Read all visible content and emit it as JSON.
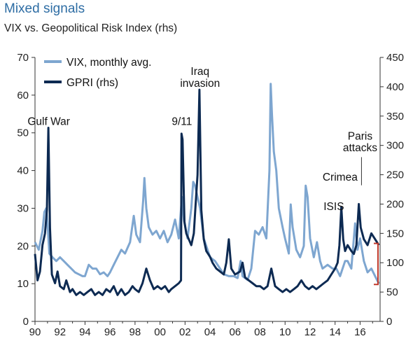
{
  "chart_data": {
    "type": "line",
    "title": "Mixed signals",
    "subtitle": "VIX vs. Geopolitical Risk Index (rhs)",
    "xlim": [
      1990,
      2017.6
    ],
    "ylim_left": [
      0,
      70
    ],
    "ylim_right": [
      0,
      450
    ],
    "x_ticks": [
      1990,
      1992,
      1994,
      1996,
      1998,
      2000,
      2002,
      2004,
      2006,
      2008,
      2010,
      2012,
      2014,
      2016
    ],
    "x_tick_labels": [
      "90",
      "92",
      "94",
      "96",
      "98",
      "00",
      "02",
      "04",
      "06",
      "08",
      "10",
      "12",
      "14",
      "16"
    ],
    "y_left_ticks": [
      "0",
      "10",
      "20",
      "30",
      "40",
      "50",
      "60",
      "70"
    ],
    "y_right_ticks": [
      "0",
      "50",
      "100",
      "150",
      "200",
      "250",
      "300",
      "350",
      "400",
      "450"
    ],
    "grid": false,
    "legend_position": "top-left",
    "series": [
      {
        "name": "VIX, monthly avg.",
        "axis": "left",
        "color": "#7ea6d0",
        "points": [
          [
            1990.0,
            21
          ],
          [
            1990.3,
            19
          ],
          [
            1990.6,
            24
          ],
          [
            1990.75,
            29
          ],
          [
            1990.9,
            30
          ],
          [
            1991.0,
            26
          ],
          [
            1991.15,
            18
          ],
          [
            1991.4,
            17
          ],
          [
            1991.7,
            16
          ],
          [
            1992.0,
            17
          ],
          [
            1992.3,
            16
          ],
          [
            1992.6,
            15
          ],
          [
            1992.9,
            14
          ],
          [
            1993.2,
            13
          ],
          [
            1993.5,
            12.5
          ],
          [
            1993.8,
            12
          ],
          [
            1994.0,
            12
          ],
          [
            1994.3,
            15
          ],
          [
            1994.6,
            14
          ],
          [
            1994.9,
            14
          ],
          [
            1995.2,
            12.5
          ],
          [
            1995.5,
            13
          ],
          [
            1995.8,
            12
          ],
          [
            1996.0,
            13
          ],
          [
            1996.3,
            15
          ],
          [
            1996.6,
            17
          ],
          [
            1996.9,
            19
          ],
          [
            1997.2,
            18
          ],
          [
            1997.6,
            21
          ],
          [
            1997.9,
            28
          ],
          [
            1998.1,
            23
          ],
          [
            1998.4,
            21
          ],
          [
            1998.65,
            32
          ],
          [
            1998.75,
            38
          ],
          [
            1998.9,
            30
          ],
          [
            1999.1,
            25
          ],
          [
            1999.4,
            23
          ],
          [
            1999.7,
            24
          ],
          [
            2000.0,
            22
          ],
          [
            2000.3,
            24
          ],
          [
            2000.6,
            21
          ],
          [
            2000.9,
            23
          ],
          [
            2001.2,
            27
          ],
          [
            2001.5,
            22
          ],
          [
            2001.75,
            33
          ],
          [
            2001.9,
            27
          ],
          [
            2002.2,
            22
          ],
          [
            2002.5,
            30
          ],
          [
            2002.65,
            37
          ],
          [
            2002.8,
            36
          ],
          [
            2003.0,
            33
          ],
          [
            2003.2,
            30
          ],
          [
            2003.5,
            22
          ],
          [
            2003.8,
            19
          ],
          [
            2004.0,
            17
          ],
          [
            2004.4,
            16
          ],
          [
            2004.8,
            14
          ],
          [
            2005.1,
            12.5
          ],
          [
            2005.5,
            12
          ],
          [
            2005.9,
            12
          ],
          [
            2006.2,
            11.5
          ],
          [
            2006.45,
            16
          ],
          [
            2006.6,
            12
          ],
          [
            2007.0,
            11
          ],
          [
            2007.3,
            14
          ],
          [
            2007.6,
            24
          ],
          [
            2007.9,
            23
          ],
          [
            2008.2,
            25
          ],
          [
            2008.5,
            22
          ],
          [
            2008.75,
            40
          ],
          [
            2008.85,
            63
          ],
          [
            2008.95,
            55
          ],
          [
            2009.1,
            45
          ],
          [
            2009.3,
            40
          ],
          [
            2009.5,
            30
          ],
          [
            2009.8,
            25
          ],
          [
            2010.0,
            22
          ],
          [
            2010.3,
            18
          ],
          [
            2010.45,
            31
          ],
          [
            2010.6,
            25
          ],
          [
            2010.9,
            19
          ],
          [
            2011.2,
            17
          ],
          [
            2011.5,
            20
          ],
          [
            2011.65,
            36
          ],
          [
            2011.8,
            33
          ],
          [
            2012.0,
            22
          ],
          [
            2012.3,
            17
          ],
          [
            2012.55,
            21
          ],
          [
            2012.8,
            16
          ],
          [
            2013.0,
            14
          ],
          [
            2013.4,
            15
          ],
          [
            2013.8,
            14
          ],
          [
            2014.1,
            14
          ],
          [
            2014.4,
            12
          ],
          [
            2014.8,
            16
          ],
          [
            2015.0,
            16
          ],
          [
            2015.3,
            14
          ],
          [
            2015.6,
            26
          ],
          [
            2015.8,
            19
          ],
          [
            2016.0,
            22
          ],
          [
            2016.3,
            16
          ],
          [
            2016.6,
            13
          ],
          [
            2016.9,
            14
          ],
          [
            2017.2,
            12
          ],
          [
            2017.5,
            10
          ]
        ]
      },
      {
        "name": "GPRI (rhs)",
        "axis": "right",
        "color": "#0d2a52",
        "points": [
          [
            1990.0,
            115
          ],
          [
            1990.2,
            70
          ],
          [
            1990.4,
            85
          ],
          [
            1990.6,
            130
          ],
          [
            1990.8,
            150
          ],
          [
            1990.95,
            190
          ],
          [
            1991.07,
            330
          ],
          [
            1991.2,
            160
          ],
          [
            1991.35,
            80
          ],
          [
            1991.6,
            65
          ],
          [
            1991.8,
            85
          ],
          [
            1992.0,
            60
          ],
          [
            1992.3,
            55
          ],
          [
            1992.5,
            70
          ],
          [
            1992.8,
            50
          ],
          [
            1993.0,
            55
          ],
          [
            1993.3,
            45
          ],
          [
            1993.6,
            50
          ],
          [
            1993.9,
            45
          ],
          [
            1994.2,
            50
          ],
          [
            1994.5,
            55
          ],
          [
            1994.8,
            45
          ],
          [
            1995.1,
            50
          ],
          [
            1995.4,
            45
          ],
          [
            1995.7,
            55
          ],
          [
            1996.0,
            50
          ],
          [
            1996.3,
            60
          ],
          [
            1996.6,
            45
          ],
          [
            1996.9,
            55
          ],
          [
            1997.2,
            45
          ],
          [
            1997.5,
            50
          ],
          [
            1997.8,
            60
          ],
          [
            1998.0,
            55
          ],
          [
            1998.3,
            50
          ],
          [
            1998.6,
            65
          ],
          [
            1998.9,
            90
          ],
          [
            1999.2,
            70
          ],
          [
            1999.5,
            55
          ],
          [
            1999.8,
            60
          ],
          [
            2000.1,
            55
          ],
          [
            2000.4,
            60
          ],
          [
            2000.7,
            50
          ],
          [
            2000.9,
            55
          ],
          [
            2001.2,
            60
          ],
          [
            2001.5,
            65
          ],
          [
            2001.68,
            70
          ],
          [
            2001.72,
            320
          ],
          [
            2001.8,
            310
          ],
          [
            2001.95,
            170
          ],
          [
            2002.1,
            150
          ],
          [
            2002.3,
            140
          ],
          [
            2002.5,
            130
          ],
          [
            2002.7,
            150
          ],
          [
            2002.85,
            200
          ],
          [
            2003.0,
            250
          ],
          [
            2003.15,
            395
          ],
          [
            2003.3,
            190
          ],
          [
            2003.5,
            140
          ],
          [
            2003.7,
            120
          ],
          [
            2004.0,
            110
          ],
          [
            2004.2,
            100
          ],
          [
            2004.5,
            90
          ],
          [
            2004.8,
            85
          ],
          [
            2005.1,
            80
          ],
          [
            2005.3,
            100
          ],
          [
            2005.5,
            140
          ],
          [
            2005.7,
            90
          ],
          [
            2006.0,
            80
          ],
          [
            2006.4,
            85
          ],
          [
            2006.6,
            100
          ],
          [
            2006.8,
            75
          ],
          [
            2007.1,
            70
          ],
          [
            2007.4,
            65
          ],
          [
            2007.7,
            60
          ],
          [
            2008.0,
            60
          ],
          [
            2008.3,
            55
          ],
          [
            2008.6,
            60
          ],
          [
            2008.9,
            90
          ],
          [
            2009.2,
            60
          ],
          [
            2009.5,
            55
          ],
          [
            2009.8,
            50
          ],
          [
            2010.1,
            55
          ],
          [
            2010.4,
            50
          ],
          [
            2010.7,
            55
          ],
          [
            2011.0,
            60
          ],
          [
            2011.3,
            70
          ],
          [
            2011.6,
            60
          ],
          [
            2011.9,
            55
          ],
          [
            2012.2,
            60
          ],
          [
            2012.5,
            55
          ],
          [
            2012.8,
            60
          ],
          [
            2013.1,
            65
          ],
          [
            2013.4,
            70
          ],
          [
            2013.7,
            80
          ],
          [
            2014.0,
            90
          ],
          [
            2014.2,
            100
          ],
          [
            2014.35,
            130
          ],
          [
            2014.5,
            195
          ],
          [
            2014.65,
            140
          ],
          [
            2014.8,
            120
          ],
          [
            2015.0,
            130
          ],
          [
            2015.3,
            120
          ],
          [
            2015.5,
            115
          ],
          [
            2015.7,
            130
          ],
          [
            2015.9,
            200
          ],
          [
            2016.05,
            160
          ],
          [
            2016.3,
            140
          ],
          [
            2016.6,
            130
          ],
          [
            2016.9,
            150
          ],
          [
            2017.2,
            140
          ],
          [
            2017.5,
            130
          ]
        ]
      }
    ],
    "annotations": [
      {
        "text": "Gulf War",
        "x": 1991.1,
        "y_right": 335
      },
      {
        "text": "9/11",
        "x": 2001.75,
        "y_right": 335
      },
      {
        "text": "Iraq",
        "x": 2003.2,
        "y_right": 420
      },
      {
        "text": "invasion",
        "x": 2003.2,
        "y_right": 400
      },
      {
        "text": "Crimea",
        "x": 2014.4,
        "y_right": 240
      },
      {
        "text": "ISIS",
        "x": 2013.9,
        "y_right": 190
      },
      {
        "text": "Paris",
        "x": 2016.0,
        "y_right": 310
      },
      {
        "text": "attacks",
        "x": 2016.0,
        "y_right": 290
      }
    ],
    "range_bracket": {
      "axis": "right",
      "from": 63,
      "to": 133,
      "color": "#c0392b"
    }
  }
}
